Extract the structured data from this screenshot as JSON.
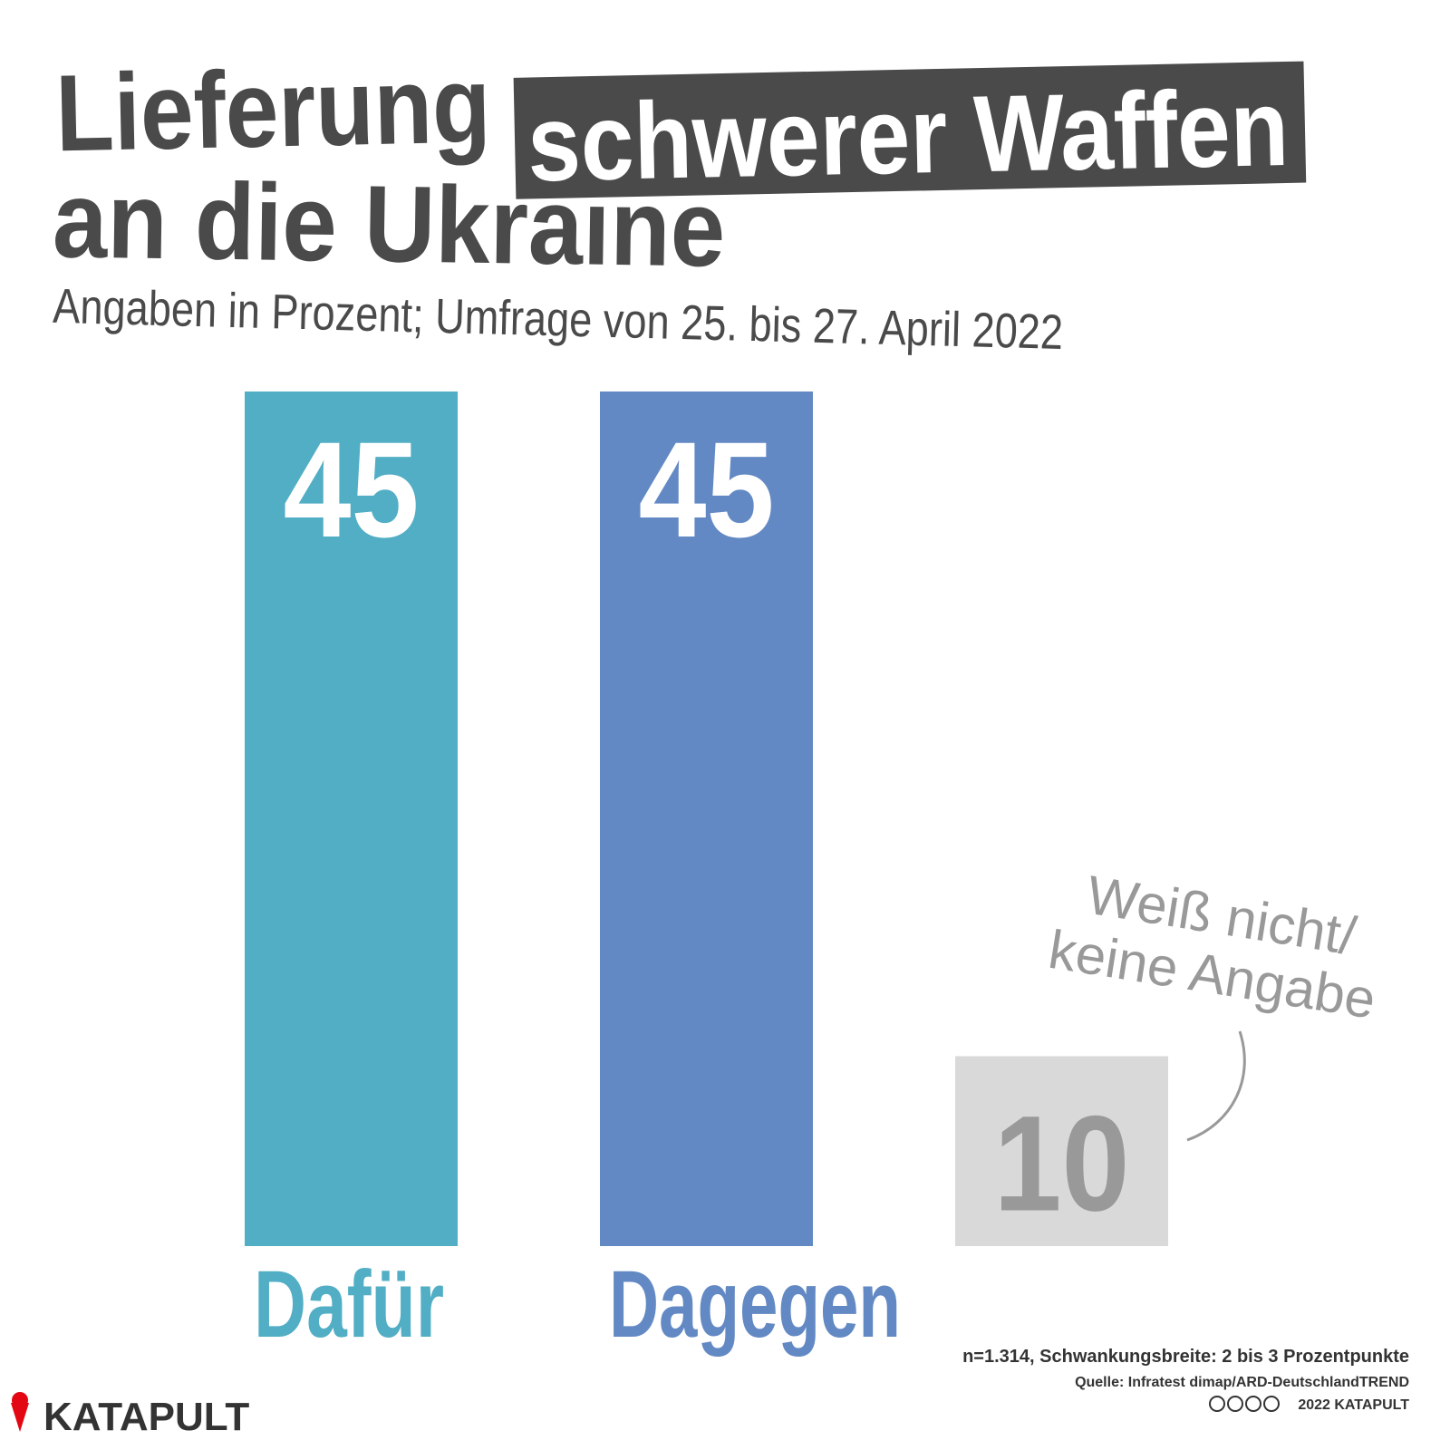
{
  "chart_data": {
    "type": "bar",
    "title": {
      "before": "Lieferung",
      "highlight": "schwerer Waffen",
      "after": "an die Ukraine"
    },
    "subtitle": "Angaben in Prozent; Umfrage von 25. bis 27. April 2022",
    "categories": [
      "Dafür",
      "Dagegen",
      "Weiß nicht/ keine Angabe"
    ],
    "values": [
      45,
      45,
      10
    ],
    "colors": [
      "#52aec4",
      "#6389c4",
      "#d9d9d9"
    ],
    "label_colors": [
      "#ffffff",
      "#ffffff",
      "#999999"
    ],
    "category_colors": [
      "#52aec4",
      "#6389c4",
      "#999999"
    ],
    "notes": [
      "n=1.314, Schwankungsbreite: 2 bis 3 Prozentpunkte",
      "Quelle: Infratest dimap/ARD-DeutschlandTREND",
      "2022 KATAPULT"
    ],
    "brand": "KATAPULT"
  }
}
